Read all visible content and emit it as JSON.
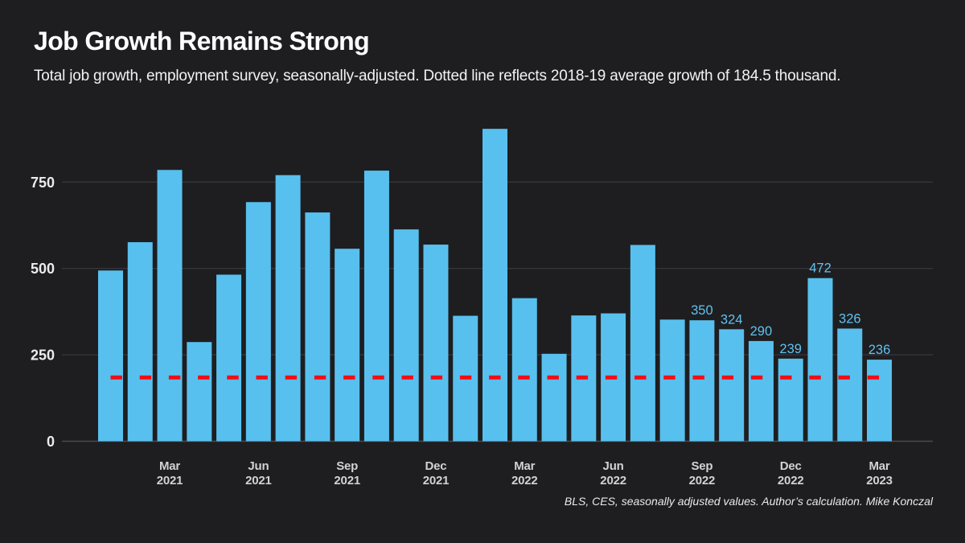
{
  "page": {
    "title": "Job Growth Remains Strong",
    "subtitle": "Total job growth, employment survey, seasonally-adjusted. Dotted line reflects 2018-19 average growth of 184.5 thousand.",
    "footer": "BLS, CES, seasonally adjusted values. Author’s calculation. Mike Konczal"
  },
  "colors": {
    "background": "#1e1e20",
    "bar": "#58c0ee",
    "bar_value_label": "#5fc2f0",
    "average_line": "#f40d13",
    "gridline": "#36363a",
    "baseline": "#4a4a4e",
    "y_tick_label": "#ebebeb",
    "x_tick_label": "#d2d2d2",
    "title_text": "#ffffff"
  },
  "chart_data": {
    "type": "bar",
    "title": "Job Growth Remains Strong",
    "xlabel": "",
    "ylabel": "",
    "unit": "thousands of jobs",
    "ylim": [
      0,
      950
    ],
    "yticks": [
      0,
      250,
      500,
      750
    ],
    "grid": "horizontal-major-only",
    "legend": "none",
    "categories": [
      "Jan 2021",
      "Feb 2021",
      "Mar 2021",
      "Apr 2021",
      "May 2021",
      "Jun 2021",
      "Jul 2021",
      "Aug 2021",
      "Sep 2021",
      "Oct 2021",
      "Nov 2021",
      "Dec 2021",
      "Jan 2022",
      "Feb 2022",
      "Mar 2022",
      "Apr 2022",
      "May 2022",
      "Jun 2022",
      "Jul 2022",
      "Aug 2022",
      "Sep 2022",
      "Oct 2022",
      "Nov 2022",
      "Dec 2022",
      "Jan 2023",
      "Feb 2023",
      "Mar 2023"
    ],
    "values": [
      494,
      576,
      785,
      287,
      482,
      692,
      770,
      662,
      557,
      783,
      613,
      569,
      363,
      904,
      414,
      253,
      364,
      370,
      568,
      352,
      350,
      324,
      290,
      239,
      472,
      326,
      236
    ],
    "labeled_indices": [
      20,
      21,
      22,
      23,
      24,
      25,
      26
    ],
    "labeled_values": [
      350,
      324,
      290,
      239,
      472,
      326,
      236
    ],
    "x_ticks": [
      {
        "index": 2,
        "line1": "Mar",
        "line2": "2021"
      },
      {
        "index": 5,
        "line1": "Jun",
        "line2": "2021"
      },
      {
        "index": 8,
        "line1": "Sep",
        "line2": "2021"
      },
      {
        "index": 11,
        "line1": "Dec",
        "line2": "2021"
      },
      {
        "index": 14,
        "line1": "Mar",
        "line2": "2022"
      },
      {
        "index": 17,
        "line1": "Jun",
        "line2": "2022"
      },
      {
        "index": 20,
        "line1": "Sep",
        "line2": "2022"
      },
      {
        "index": 23,
        "line1": "Dec",
        "line2": "2022"
      },
      {
        "index": 26,
        "line1": "Mar",
        "line2": "2023"
      }
    ],
    "reference_line": {
      "value": 184.5,
      "style": "dashed"
    }
  }
}
